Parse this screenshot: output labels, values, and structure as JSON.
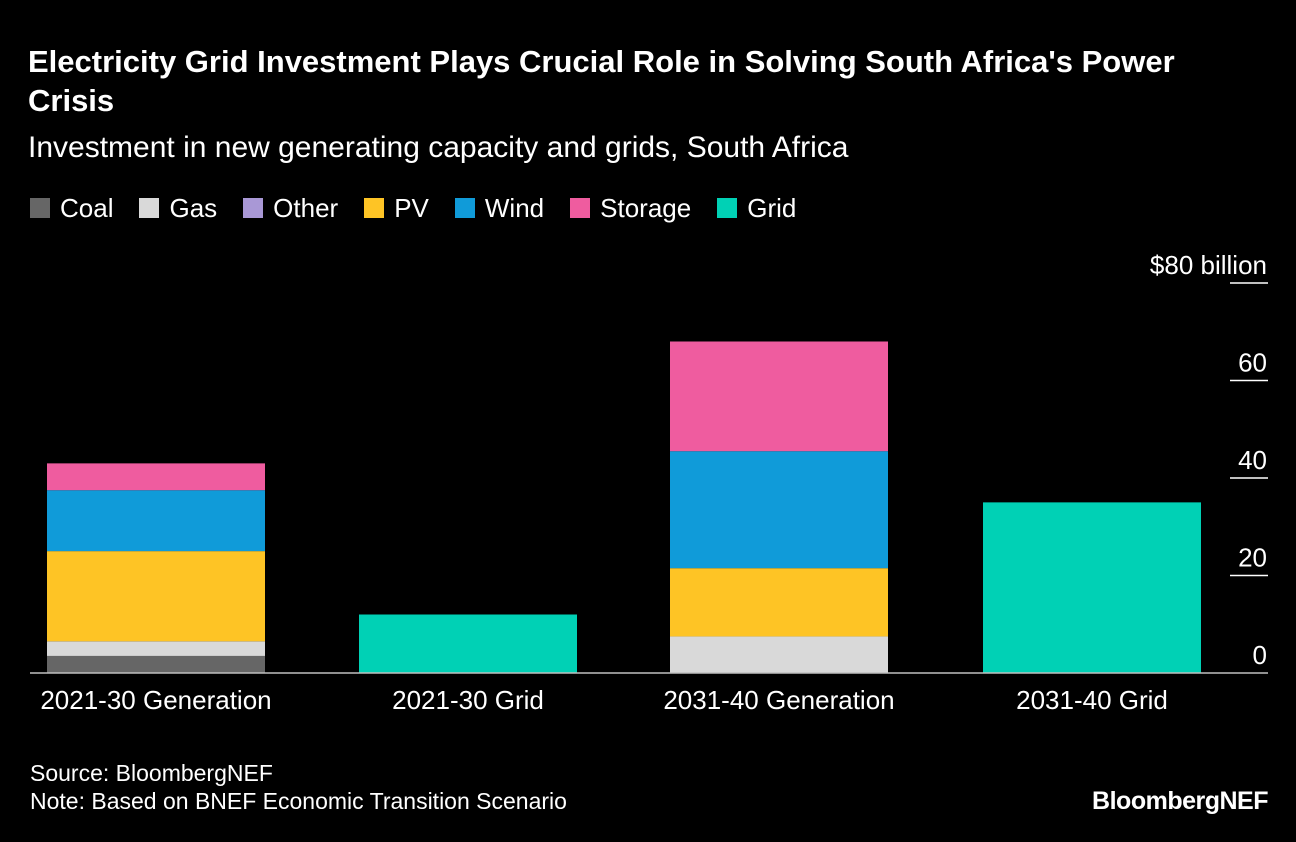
{
  "chart_data": {
    "type": "bar",
    "stacked": true,
    "title": "Electricity Grid Investment Plays Crucial Role in Solving South Africa's Power Crisis",
    "subtitle": "Investment in new generating capacity and grids, South Africa",
    "categories": [
      "2021-30 Generation",
      "2021-30 Grid",
      "2031-40 Generation",
      "2031-40 Grid"
    ],
    "series": [
      {
        "name": "Coal",
        "color": "#666666",
        "values": [
          3.5,
          0,
          0,
          0
        ]
      },
      {
        "name": "Gas",
        "color": "#d9d9d9",
        "values": [
          3,
          0,
          7.5,
          0
        ]
      },
      {
        "name": "Other",
        "color": "#a998d6",
        "values": [
          0,
          0,
          0,
          0
        ]
      },
      {
        "name": "PV",
        "color": "#fec425",
        "values": [
          18.5,
          0,
          14,
          0
        ]
      },
      {
        "name": "Wind",
        "color": "#109bd9",
        "values": [
          12.5,
          0,
          24,
          0
        ]
      },
      {
        "name": "Storage",
        "color": "#ef5c9f",
        "values": [
          5.5,
          0,
          22.5,
          0
        ]
      },
      {
        "name": "Grid",
        "color": "#00d1b5",
        "values": [
          0,
          12,
          0,
          35
        ]
      }
    ],
    "y_axis": {
      "min": 0,
      "max": 80,
      "ticks": [
        0,
        20,
        40,
        60,
        80
      ],
      "tick_labels": [
        "0",
        "20",
        "40",
        "60",
        "$80 billion"
      ],
      "position": "right"
    },
    "xlabel": "",
    "ylabel": "",
    "grid": false,
    "legend_position": "top-left"
  },
  "footer": {
    "source": "Source: BloombergNEF",
    "note": "Note: Based on BNEF Economic Transition Scenario",
    "logo": "BloombergNEF"
  }
}
